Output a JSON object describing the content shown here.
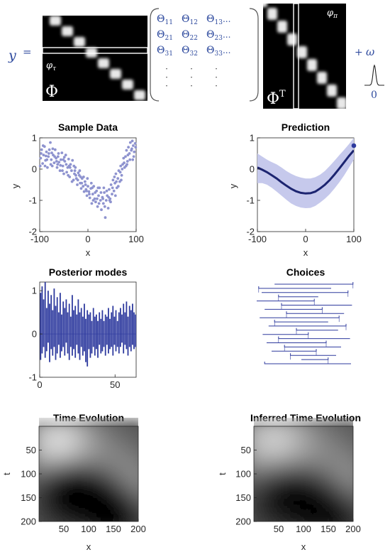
{
  "equation": {
    "lhs": "y",
    "equals": "=",
    "phi_symbol": "Φ",
    "phi_transpose_symbol": "Φ",
    "transpose_sup": "T",
    "phi_tau_left": "φ",
    "phi_tau_left_sub": "τ",
    "phi_tau_right": "φ",
    "phi_tau_right_sub": "π",
    "plus": "+",
    "omega": "ω",
    "noise_zero": "0",
    "theta_rows": [
      [
        "Θ11",
        "Θ12",
        "Θ13..."
      ],
      [
        "Θ21",
        "Θ22",
        "Θ23..."
      ],
      [
        "Θ31",
        "Θ32",
        "Θ33..."
      ]
    ],
    "theta_entries": [
      [
        {
          "sym": "Θ",
          "sub": "11",
          "tail": ""
        },
        {
          "sym": "Θ",
          "sub": "12",
          "tail": ""
        },
        {
          "sym": "Θ",
          "sub": "13",
          "tail": "..."
        }
      ],
      [
        {
          "sym": "Θ",
          "sub": "21",
          "tail": ""
        },
        {
          "sym": "Θ",
          "sub": "22",
          "tail": ""
        },
        {
          "sym": "Θ",
          "sub": "23",
          "tail": "..."
        }
      ],
      [
        {
          "sym": "Θ",
          "sub": "31",
          "tail": ""
        },
        {
          "sym": "Θ",
          "sub": "32",
          "tail": ""
        },
        {
          "sym": "Θ",
          "sub": "33",
          "tail": "..."
        }
      ]
    ],
    "dots": "·",
    "colors": {
      "accent": "#2e4a9e",
      "matrix_bg": "#000000"
    }
  },
  "chart_data": [
    {
      "id": "sample",
      "type": "scatter",
      "title": "Sample Data",
      "xlabel": "x",
      "ylabel": "y",
      "xlim": [
        -100,
        100
      ],
      "ylim": [
        -2,
        1
      ],
      "xticks": [
        -100,
        0,
        100
      ],
      "yticks": [
        -2,
        -1,
        0,
        1
      ],
      "color": "#8e93cf",
      "points": [
        [
          -98,
          0.35
        ],
        [
          -96,
          0.62
        ],
        [
          -94,
          0.18
        ],
        [
          -92,
          0.45
        ],
        [
          -90,
          0.72
        ],
        [
          -88,
          0.28
        ],
        [
          -86,
          0.55
        ],
        [
          -84,
          0.05
        ],
        [
          -82,
          0.4
        ],
        [
          -80,
          0.62
        ],
        [
          -78,
          0.85
        ],
        [
          -76,
          0.3
        ],
        [
          -74,
          0.1
        ],
        [
          -72,
          0.45
        ],
        [
          -70,
          0.2
        ],
        [
          -68,
          0.62
        ],
        [
          -66,
          0.35
        ],
        [
          -64,
          0.05
        ],
        [
          -62,
          0.4
        ],
        [
          -60,
          0.22
        ],
        [
          -58,
          -0.05
        ],
        [
          -56,
          0.3
        ],
        [
          -54,
          0.52
        ],
        [
          -52,
          0.1
        ],
        [
          -50,
          -0.15
        ],
        [
          -48,
          0.25
        ],
        [
          -46,
          0.45
        ],
        [
          -44,
          -0.1
        ],
        [
          -42,
          0.05
        ],
        [
          -40,
          0.32
        ],
        [
          -38,
          -0.25
        ],
        [
          -36,
          0.15
        ],
        [
          -34,
          -0.05
        ],
        [
          -32,
          0.28
        ],
        [
          -30,
          -0.35
        ],
        [
          -28,
          -0.15
        ],
        [
          -26,
          0.05
        ],
        [
          -24,
          -0.3
        ],
        [
          -22,
          -0.5
        ],
        [
          -20,
          -0.12
        ],
        [
          -18,
          -0.2
        ],
        [
          -16,
          -0.45
        ],
        [
          -14,
          -0.62
        ],
        [
          -12,
          -0.3
        ],
        [
          -10,
          -0.55
        ],
        [
          -8,
          -0.72
        ],
        [
          -6,
          -0.4
        ],
        [
          -4,
          -0.65
        ],
        [
          -2,
          -0.85
        ],
        [
          0,
          -0.55
        ],
        [
          2,
          -0.72
        ],
        [
          4,
          -0.92
        ],
        [
          6,
          -0.62
        ],
        [
          8,
          -1.1
        ],
        [
          10,
          -0.8
        ],
        [
          12,
          -0.55
        ],
        [
          14,
          -0.95
        ],
        [
          16,
          -1.05
        ],
        [
          18,
          -0.7
        ],
        [
          20,
          -1.2
        ],
        [
          22,
          -0.85
        ],
        [
          24,
          -0.6
        ],
        [
          26,
          -1.0
        ],
        [
          28,
          -1.3
        ],
        [
          30,
          -0.9
        ],
        [
          32,
          -1.1
        ],
        [
          34,
          -0.75
        ],
        [
          36,
          -1.55
        ],
        [
          38,
          -1.0
        ],
        [
          40,
          -0.85
        ],
        [
          42,
          -1.25
        ],
        [
          44,
          -0.65
        ],
        [
          46,
          -0.95
        ],
        [
          48,
          -0.5
        ],
        [
          50,
          -0.8
        ],
        [
          52,
          -0.35
        ],
        [
          54,
          -0.7
        ],
        [
          56,
          -0.45
        ],
        [
          58,
          -0.15
        ],
        [
          60,
          -0.6
        ],
        [
          62,
          -0.3
        ],
        [
          64,
          -0.05
        ],
        [
          66,
          -0.4
        ],
        [
          68,
          0.1
        ],
        [
          70,
          -0.2
        ],
        [
          72,
          0.15
        ],
        [
          74,
          0.35
        ],
        [
          76,
          0.05
        ],
        [
          78,
          0.4
        ],
        [
          80,
          0.6
        ],
        [
          82,
          0.25
        ],
        [
          84,
          0.7
        ],
        [
          86,
          0.5
        ],
        [
          88,
          0.85
        ],
        [
          90,
          0.6
        ],
        [
          92,
          0.9
        ],
        [
          94,
          0.75
        ],
        [
          96,
          0.55
        ],
        [
          98,
          0.82
        ],
        [
          -97,
          0.5
        ],
        [
          -93,
          0.75
        ],
        [
          -89,
          0.1
        ],
        [
          -85,
          0.3
        ],
        [
          -81,
          0.5
        ],
        [
          -77,
          0.15
        ],
        [
          -73,
          0.65
        ],
        [
          -69,
          0.4
        ],
        [
          -65,
          0.25
        ],
        [
          -61,
          0.5
        ],
        [
          -57,
          0.12
        ],
        [
          -53,
          -0.05
        ],
        [
          -49,
          0.38
        ],
        [
          -45,
          0.15
        ],
        [
          -41,
          -0.2
        ],
        [
          -37,
          0.05
        ],
        [
          -33,
          -0.4
        ],
        [
          -29,
          0.1
        ],
        [
          -25,
          -0.2
        ],
        [
          -21,
          -0.35
        ],
        [
          -17,
          -0.05
        ],
        [
          -13,
          -0.45
        ],
        [
          -9,
          -0.25
        ],
        [
          -5,
          -0.5
        ],
        [
          -1,
          -0.3
        ],
        [
          3,
          -0.8
        ],
        [
          7,
          -0.45
        ],
        [
          11,
          -1.0
        ],
        [
          15,
          -0.75
        ],
        [
          19,
          -0.95
        ],
        [
          23,
          -1.1
        ],
        [
          27,
          -0.75
        ],
        [
          31,
          -0.95
        ],
        [
          35,
          -1.2
        ],
        [
          39,
          -0.7
        ],
        [
          43,
          -0.9
        ],
        [
          47,
          -1.05
        ],
        [
          51,
          -0.6
        ],
        [
          55,
          -0.25
        ],
        [
          59,
          -0.4
        ],
        [
          63,
          -0.55
        ],
        [
          67,
          -0.1
        ],
        [
          71,
          0.0
        ],
        [
          75,
          0.2
        ],
        [
          79,
          0.1
        ],
        [
          83,
          0.45
        ],
        [
          87,
          0.3
        ],
        [
          91,
          0.65
        ],
        [
          95,
          0.4
        ],
        [
          99,
          0.7
        ],
        [
          -99,
          0.1
        ],
        [
          -87,
          0.42
        ],
        [
          -75,
          0.52
        ],
        [
          -63,
          0.15
        ],
        [
          -51,
          0.3
        ],
        [
          -39,
          0.1
        ],
        [
          -27,
          -0.05
        ],
        [
          -15,
          -0.25
        ],
        [
          -3,
          -0.7
        ],
        [
          9,
          -0.6
        ],
        [
          21,
          -0.6
        ],
        [
          33,
          -0.6
        ],
        [
          45,
          -1.0
        ],
        [
          57,
          -0.85
        ],
        [
          69,
          -0.35
        ],
        [
          81,
          0.15
        ],
        [
          93,
          0.3
        ]
      ]
    },
    {
      "id": "prediction",
      "type": "line",
      "title": "Prediction",
      "xlabel": "",
      "ylabel": "y",
      "xlim": [
        -100,
        100
      ],
      "ylim": [
        -2,
        1
      ],
      "xticks": [
        -100,
        0,
        100
      ],
      "yticks": [
        -2,
        -1,
        0,
        1
      ],
      "line_color": "#1c2470",
      "band_color": "#c6c9ec",
      "x": [
        -100,
        -90,
        -80,
        -70,
        -60,
        -50,
        -40,
        -30,
        -20,
        -10,
        0,
        10,
        20,
        30,
        40,
        50,
        60,
        70,
        80,
        90,
        100
      ],
      "mean": [
        0.05,
        -0.02,
        -0.1,
        -0.2,
        -0.3,
        -0.42,
        -0.53,
        -0.63,
        -0.71,
        -0.76,
        -0.78,
        -0.77,
        -0.72,
        -0.62,
        -0.5,
        -0.35,
        -0.17,
        0.02,
        0.22,
        0.42,
        0.6
      ],
      "upper": [
        0.5,
        0.4,
        0.3,
        0.22,
        0.15,
        0.05,
        -0.06,
        -0.15,
        -0.22,
        -0.27,
        -0.3,
        -0.3,
        -0.26,
        -0.18,
        -0.06,
        0.1,
        0.27,
        0.45,
        0.62,
        0.8,
        1.0
      ],
      "lower": [
        -0.45,
        -0.45,
        -0.5,
        -0.6,
        -0.72,
        -0.85,
        -0.98,
        -1.1,
        -1.18,
        -1.23,
        -1.25,
        -1.24,
        -1.18,
        -1.07,
        -0.95,
        -0.8,
        -0.62,
        -0.42,
        -0.2,
        0.05,
        0.3
      ],
      "endpoint": [
        100,
        0.75
      ]
    },
    {
      "id": "posterior",
      "type": "bar",
      "title": "Posterior modes",
      "xlabel": "",
      "ylabel": "",
      "xlim": [
        0,
        64
      ],
      "ylim": [
        -1,
        1.2
      ],
      "xticks": [
        0,
        50
      ],
      "yticks": [
        -1,
        0,
        1
      ],
      "color": "#2e3a9e",
      "values": [
        [
          0.95,
          -0.6
        ],
        [
          1.1,
          -0.45
        ],
        [
          0.8,
          -0.3
        ],
        [
          1.2,
          -0.55
        ],
        [
          0.6,
          -0.4
        ],
        [
          1.0,
          -0.2
        ],
        [
          0.7,
          -0.65
        ],
        [
          0.9,
          -0.35
        ],
        [
          0.55,
          -0.5
        ],
        [
          1.05,
          -0.3
        ],
        [
          0.65,
          -0.6
        ],
        [
          0.85,
          -0.45
        ],
        [
          0.5,
          -0.25
        ],
        [
          0.95,
          -0.55
        ],
        [
          0.45,
          -0.4
        ],
        [
          0.75,
          -0.3
        ],
        [
          0.6,
          -0.5
        ],
        [
          0.8,
          -0.2
        ],
        [
          0.5,
          -0.45
        ],
        [
          0.7,
          -0.6
        ],
        [
          0.4,
          -0.3
        ],
        [
          0.9,
          -0.5
        ],
        [
          0.55,
          -0.35
        ],
        [
          0.65,
          -0.55
        ],
        [
          0.45,
          -0.25
        ],
        [
          0.8,
          -0.45
        ],
        [
          0.5,
          -0.6
        ],
        [
          0.6,
          -0.3
        ],
        [
          0.4,
          -0.5
        ],
        [
          0.7,
          -0.4
        ],
        [
          0.35,
          -0.65
        ],
        [
          0.55,
          -0.75
        ],
        [
          0.45,
          -0.35
        ],
        [
          0.5,
          -0.55
        ],
        [
          0.3,
          -0.45
        ],
        [
          0.6,
          -0.3
        ],
        [
          0.4,
          -0.5
        ],
        [
          0.45,
          -0.35
        ],
        [
          0.3,
          -0.55
        ],
        [
          0.5,
          -0.25
        ],
        [
          0.35,
          -0.45
        ],
        [
          0.55,
          -0.4
        ],
        [
          0.3,
          -0.3
        ],
        [
          0.45,
          -0.5
        ],
        [
          0.4,
          -0.25
        ],
        [
          0.6,
          -0.45
        ],
        [
          0.35,
          -0.35
        ],
        [
          0.5,
          -0.3
        ],
        [
          0.65,
          -0.5
        ],
        [
          0.4,
          -0.25
        ],
        [
          0.55,
          -0.4
        ],
        [
          0.3,
          -0.3
        ],
        [
          0.5,
          -0.45
        ],
        [
          0.6,
          -0.3
        ],
        [
          0.45,
          -0.2
        ],
        [
          0.7,
          -0.45
        ],
        [
          0.5,
          -0.25
        ],
        [
          0.75,
          -0.35
        ],
        [
          0.4,
          -0.5
        ],
        [
          0.65,
          -0.3
        ],
        [
          0.55,
          -0.4
        ],
        [
          0.7,
          -0.25
        ],
        [
          0.5,
          -0.35
        ],
        [
          0.45,
          -0.3
        ]
      ]
    },
    {
      "id": "choices",
      "type": "diagram",
      "title": "Choices",
      "color": "#2e3a9e",
      "segments": [
        [
          0.18,
          0.97
        ],
        [
          0.02,
          0.75
        ],
        [
          0.05,
          0.92
        ],
        [
          0.22,
          0.62
        ],
        [
          0.0,
          0.58
        ],
        [
          0.25,
          0.96
        ],
        [
          0.08,
          0.66
        ],
        [
          0.3,
          0.88
        ],
        [
          0.03,
          0.83
        ],
        [
          0.18,
          0.72
        ],
        [
          0.12,
          0.9
        ],
        [
          0.4,
          0.82
        ],
        [
          0.06,
          0.52
        ],
        [
          0.22,
          0.94
        ],
        [
          0.1,
          0.7
        ],
        [
          0.28,
          0.85
        ],
        [
          0.15,
          0.6
        ],
        [
          0.34,
          0.8
        ],
        [
          0.45,
          0.72
        ],
        [
          0.08,
          0.95
        ]
      ]
    },
    {
      "id": "time_evolution",
      "type": "heatmap",
      "title": "Time Evolution",
      "xlabel": "x",
      "ylabel": "t",
      "xlim": [
        0,
        200
      ],
      "ylim": [
        0,
        200
      ],
      "xticks": [
        50,
        100,
        150,
        200
      ],
      "yticks": [
        50,
        100,
        150,
        200
      ],
      "blobs": [
        [
          40,
          40,
          55,
          0.55
        ],
        [
          150,
          70,
          45,
          0.12
        ],
        [
          60,
          130,
          45,
          -0.35
        ],
        [
          140,
          180,
          50,
          -0.4
        ],
        [
          195,
          130,
          45,
          0.25
        ],
        [
          100,
          200,
          30,
          0.1
        ]
      ],
      "base": 0.32
    },
    {
      "id": "inferred_time_evolution",
      "type": "heatmap",
      "title": "Inferred Time Evolution",
      "xlabel": "x",
      "ylabel": "t",
      "xlim": [
        0,
        200
      ],
      "ylim": [
        0,
        200
      ],
      "xticks": [
        50,
        100,
        150,
        200
      ],
      "yticks": [
        50,
        100,
        150,
        200
      ],
      "blobs": [
        [
          40,
          40,
          60,
          0.5
        ],
        [
          150,
          70,
          50,
          0.12
        ],
        [
          60,
          135,
          50,
          -0.3
        ],
        [
          145,
          180,
          55,
          -0.35
        ],
        [
          195,
          125,
          45,
          0.25
        ],
        [
          100,
          200,
          35,
          0.08
        ]
      ],
      "base": 0.32
    }
  ]
}
